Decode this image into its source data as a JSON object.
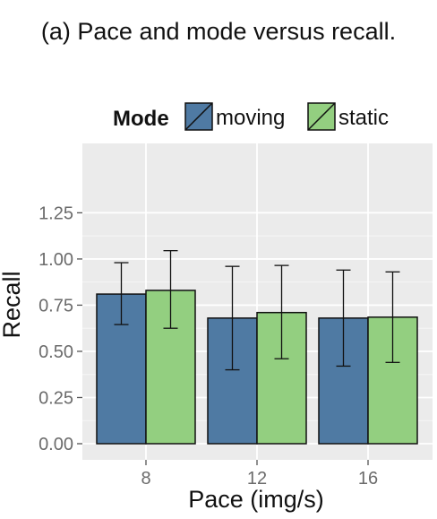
{
  "figure": {
    "caption": "(a) Pace and mode versus recall."
  },
  "chart_data": {
    "type": "bar",
    "title": "",
    "xlabel": "Pace (img/s)",
    "ylabel": "Recall",
    "categories": [
      "8",
      "12",
      "16"
    ],
    "ylim": [
      0,
      1.3
    ],
    "yticks": [
      0.0,
      0.25,
      0.5,
      0.75,
      1.0,
      1.25
    ],
    "ytick_labels": [
      "0.00",
      "0.25",
      "0.50",
      "0.75",
      "1.00",
      "1.25"
    ],
    "grid": true,
    "error_bars": true,
    "legend": {
      "title": "Mode",
      "position": "top"
    },
    "series": [
      {
        "name": "moving",
        "color": "#4f7aa3",
        "values": [
          0.81,
          0.68,
          0.68
        ],
        "err_low": [
          0.645,
          0.4,
          0.42
        ],
        "err_high": [
          0.98,
          0.96,
          0.94
        ]
      },
      {
        "name": "static",
        "color": "#93cf80",
        "values": [
          0.83,
          0.71,
          0.685
        ],
        "err_low": [
          0.625,
          0.46,
          0.44
        ],
        "err_high": [
          1.045,
          0.965,
          0.93
        ]
      }
    ]
  }
}
